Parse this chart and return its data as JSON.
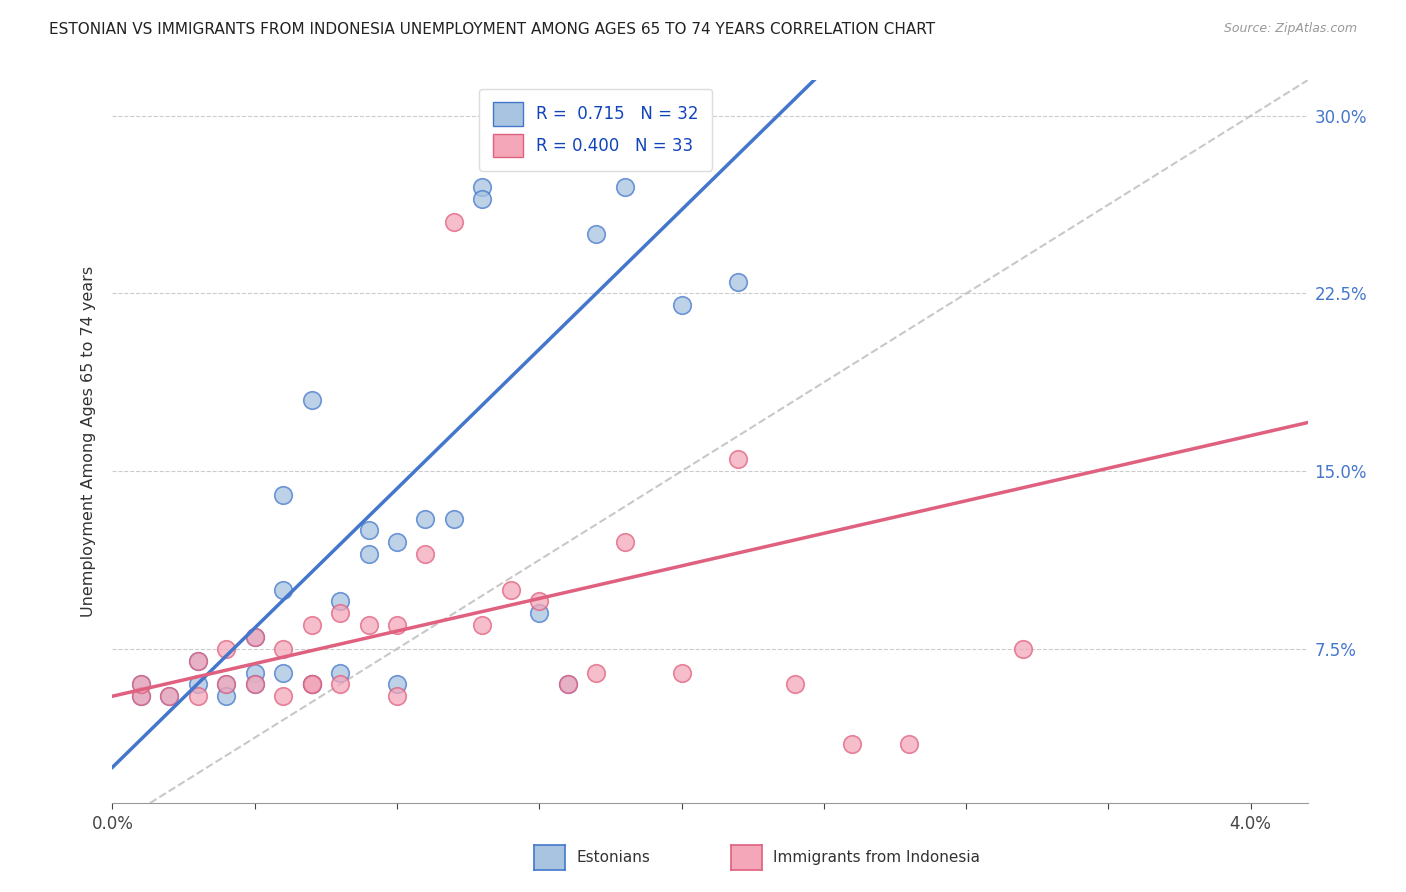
{
  "title": "ESTONIAN VS IMMIGRANTS FROM INDONESIA UNEMPLOYMENT AMONG AGES 65 TO 74 YEARS CORRELATION CHART",
  "source": "Source: ZipAtlas.com",
  "ylabel": "Unemployment Among Ages 65 to 74 years",
  "right_yticklabels": [
    "7.5%",
    "15.0%",
    "22.5%",
    "30.0%"
  ],
  "right_ytick_vals": [
    0.075,
    0.15,
    0.225,
    0.3
  ],
  "color_estonian": "#a8c4e0",
  "color_indonesia": "#f4a7b9",
  "color_line_estonian": "#4477cc",
  "color_line_indonesia": "#e06080",
  "color_dashed": "#bbbbbb",
  "estonians_x": [
    0.001,
    0.001,
    0.002,
    0.003,
    0.003,
    0.004,
    0.004,
    0.005,
    0.005,
    0.005,
    0.006,
    0.006,
    0.006,
    0.007,
    0.007,
    0.007,
    0.008,
    0.008,
    0.009,
    0.009,
    0.01,
    0.01,
    0.011,
    0.012,
    0.013,
    0.013,
    0.015,
    0.016,
    0.017,
    0.018,
    0.02,
    0.022
  ],
  "estonians_y": [
    0.055,
    0.06,
    0.055,
    0.06,
    0.07,
    0.06,
    0.055,
    0.08,
    0.065,
    0.06,
    0.1,
    0.14,
    0.065,
    0.18,
    0.06,
    0.06,
    0.065,
    0.095,
    0.115,
    0.125,
    0.06,
    0.12,
    0.13,
    0.13,
    0.27,
    0.265,
    0.09,
    0.06,
    0.25,
    0.27,
    0.22,
    0.23
  ],
  "indonesia_x": [
    0.001,
    0.001,
    0.002,
    0.003,
    0.003,
    0.004,
    0.004,
    0.005,
    0.005,
    0.006,
    0.006,
    0.007,
    0.007,
    0.007,
    0.008,
    0.008,
    0.009,
    0.01,
    0.01,
    0.011,
    0.012,
    0.013,
    0.014,
    0.015,
    0.016,
    0.017,
    0.018,
    0.02,
    0.022,
    0.024,
    0.026,
    0.028,
    0.032
  ],
  "indonesia_y": [
    0.055,
    0.06,
    0.055,
    0.055,
    0.07,
    0.06,
    0.075,
    0.06,
    0.08,
    0.055,
    0.075,
    0.06,
    0.085,
    0.06,
    0.06,
    0.09,
    0.085,
    0.055,
    0.085,
    0.115,
    0.255,
    0.085,
    0.1,
    0.095,
    0.06,
    0.065,
    0.12,
    0.065,
    0.155,
    0.06,
    0.035,
    0.035,
    0.075
  ],
  "line_est_x0": 0.0,
  "line_est_y0": 0.025,
  "line_est_x1": 0.017,
  "line_est_y1": 0.225,
  "line_ind_x0": 0.0,
  "line_ind_y0": 0.055,
  "line_ind_x1": 0.04,
  "line_ind_y1": 0.165,
  "xmin": 0.0,
  "xmax": 0.042,
  "ymin": 0.01,
  "ymax": 0.315
}
